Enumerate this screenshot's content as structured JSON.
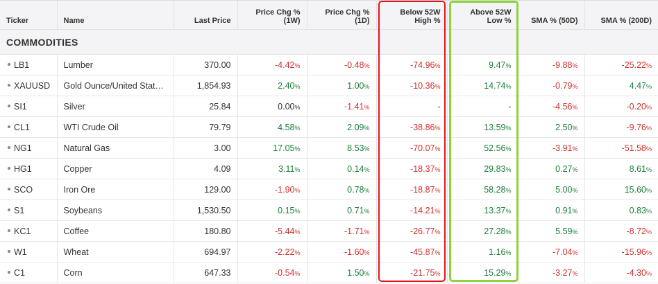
{
  "columns": [
    {
      "key": "ticker",
      "label": "Ticker"
    },
    {
      "key": "name",
      "label": "Name"
    },
    {
      "key": "last",
      "label": "Last Price"
    },
    {
      "key": "chg1w",
      "label": "Price Chg % (1W)"
    },
    {
      "key": "chg1d",
      "label": "Price Chg % (1D)"
    },
    {
      "key": "below52",
      "label": "Below 52W High %"
    },
    {
      "key": "above52",
      "label": "Above 52W Low %"
    },
    {
      "key": "sma50",
      "label": "SMA % (50D)"
    },
    {
      "key": "sma200",
      "label": "SMA % (200D)"
    }
  ],
  "section_title": "COMMODITIES",
  "percent_symbol": "%",
  "colors": {
    "positive": "#1a7f37",
    "negative": "#d0312d",
    "highlight_below": "#e8121a",
    "highlight_above": "#8cd43a"
  },
  "rows": [
    {
      "ticker": "LB1",
      "name": "Lumber",
      "last": "370.00",
      "chg1w": "-4.42",
      "chg1d": "-0.48",
      "below52": "-74.96",
      "above52": "9.47",
      "sma50": "-9.88",
      "sma200": "-25.22"
    },
    {
      "ticker": "XAUUSD",
      "name": "Gold Ounce/United States Dollar",
      "last": "1,854.93",
      "chg1w": "2.40",
      "chg1d": "1.00",
      "below52": "-10.36",
      "above52": "14.74",
      "sma50": "-0.79",
      "sma200": "4.47"
    },
    {
      "ticker": "SI1",
      "name": "Silver",
      "last": "25.84",
      "chg1w": "0.00",
      "chg1d": "-1.41",
      "below52": "-",
      "above52": "-",
      "sma50": "-4.56",
      "sma200": "-0.20"
    },
    {
      "ticker": "CL1",
      "name": "WTI Crude Oil",
      "last": "79.79",
      "chg1w": "4.58",
      "chg1d": "2.09",
      "below52": "-38.86",
      "above52": "13.59",
      "sma50": "2.50",
      "sma200": "-9.76"
    },
    {
      "ticker": "NG1",
      "name": "Natural Gas",
      "last": "3.00",
      "chg1w": "17.05",
      "chg1d": "8.53",
      "below52": "-70.07",
      "above52": "52.56",
      "sma50": "-3.91",
      "sma200": "-51.58"
    },
    {
      "ticker": "HG1",
      "name": "Copper",
      "last": "4.09",
      "chg1w": "3.11",
      "chg1d": "0.14",
      "below52": "-18.37",
      "above52": "29.83",
      "sma50": "0.27",
      "sma200": "8.61"
    },
    {
      "ticker": "SCO",
      "name": "Iron Ore",
      "last": "129.00",
      "chg1w": "-1.90",
      "chg1d": "0.78",
      "below52": "-18.87",
      "above52": "58.28",
      "sma50": "5.00",
      "sma200": "15.60"
    },
    {
      "ticker": "S1",
      "name": "Soybeans",
      "last": "1,530.50",
      "chg1w": "0.15",
      "chg1d": "0.71",
      "below52": "-14.21",
      "above52": "13.37",
      "sma50": "0.91",
      "sma200": "0.83"
    },
    {
      "ticker": "KC1",
      "name": "Coffee",
      "last": "180.80",
      "chg1w": "-5.44",
      "chg1d": "-1.71",
      "below52": "-26.77",
      "above52": "27.28",
      "sma50": "5.59",
      "sma200": "-8.72"
    },
    {
      "ticker": "W1",
      "name": "Wheat",
      "last": "694.97",
      "chg1w": "-2.22",
      "chg1d": "-1.60",
      "below52": "-45.87",
      "above52": "1.16",
      "sma50": "-7.04",
      "sma200": "-15.96"
    },
    {
      "ticker": "C1",
      "name": "Corn",
      "last": "647.33",
      "chg1w": "-0.54",
      "chg1d": "1.50",
      "below52": "-21.75",
      "above52": "15.29",
      "sma50": "-3.27",
      "sma200": "-4.30"
    }
  ]
}
